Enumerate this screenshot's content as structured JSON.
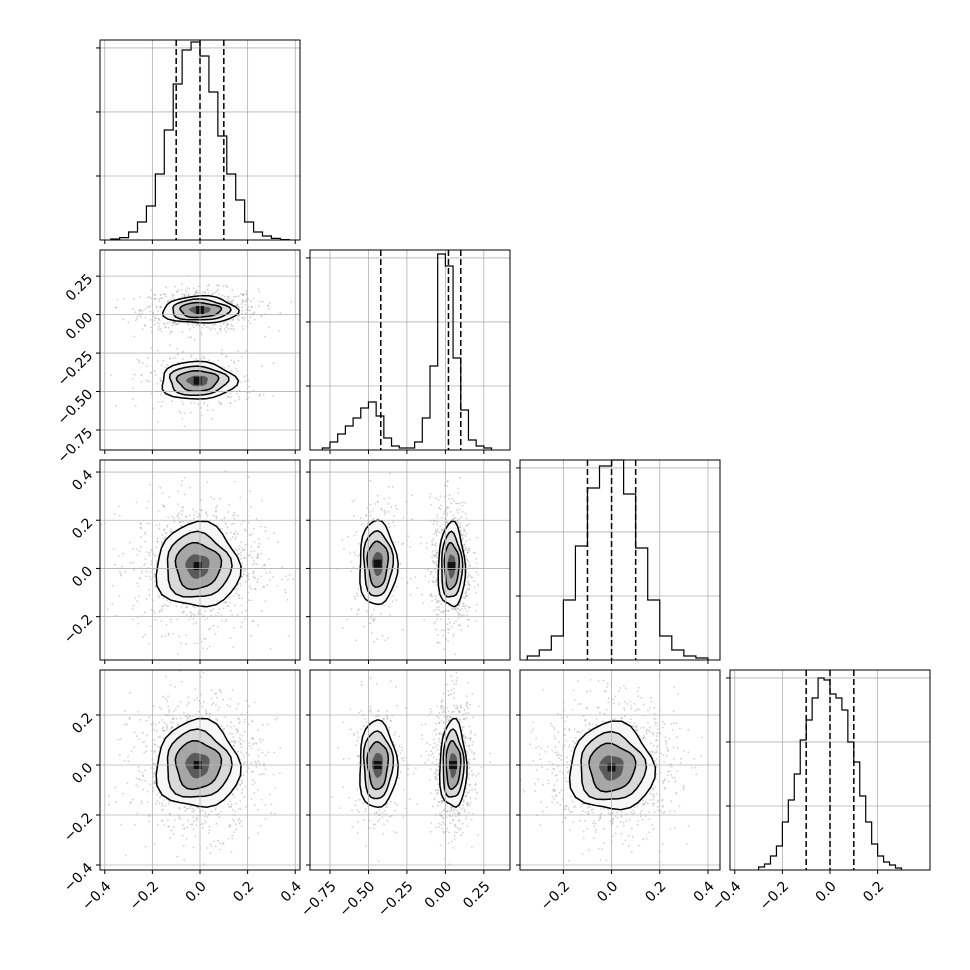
{
  "chart_data": {
    "type": "corner",
    "parameters": 4,
    "grid": true,
    "histograms": [
      {
        "param": 0,
        "xlim": [
          -0.42,
          0.42
        ],
        "ylim": [
          0,
          1.0
        ],
        "quantiles": [
          -0.1,
          0.0,
          0.1
        ],
        "bin_edges": [
          -0.375,
          -0.3375,
          -0.3,
          -0.2625,
          -0.225,
          -0.1875,
          -0.15,
          -0.1125,
          -0.075,
          -0.0375,
          0.0,
          0.0375,
          0.075,
          0.1125,
          0.15,
          0.1875,
          0.225,
          0.2625,
          0.3,
          0.3375,
          0.375
        ],
        "counts": [
          0.005,
          0.012,
          0.04,
          0.09,
          0.17,
          0.33,
          0.55,
          0.78,
          0.95,
          0.99,
          0.92,
          0.74,
          0.52,
          0.33,
          0.2,
          0.09,
          0.04,
          0.02,
          0.008,
          0.002
        ]
      },
      {
        "param": 1,
        "xlim": [
          -0.88,
          0.42
        ],
        "ylim": [
          0,
          1.0
        ],
        "quantiles": [
          -0.42,
          0.02,
          0.1
        ],
        "bin_edges": [
          -0.8,
          -0.75,
          -0.7,
          -0.65,
          -0.6,
          -0.55,
          -0.5,
          -0.45,
          -0.4,
          -0.35,
          -0.3,
          -0.25,
          -0.2,
          -0.15,
          -0.1,
          -0.05,
          0.0,
          0.05,
          0.1,
          0.15,
          0.2,
          0.25,
          0.3
        ],
        "counts": [
          0.01,
          0.04,
          0.08,
          0.12,
          0.16,
          0.21,
          0.24,
          0.17,
          0.06,
          0.02,
          0.01,
          0.01,
          0.04,
          0.16,
          0.42,
          0.98,
          0.92,
          0.46,
          0.2,
          0.05,
          0.02,
          0.01
        ]
      },
      {
        "param": 2,
        "xlim": [
          -0.38,
          0.45
        ],
        "ylim": [
          0,
          1.0
        ],
        "quantiles": [
          -0.1,
          0.0,
          0.1
        ],
        "bin_edges": [
          -0.35,
          -0.3,
          -0.25,
          -0.2,
          -0.15,
          -0.1,
          -0.05,
          0.0,
          0.05,
          0.1,
          0.15,
          0.2,
          0.25,
          0.3,
          0.35,
          0.4
        ],
        "counts": [
          0.02,
          0.05,
          0.12,
          0.3,
          0.57,
          0.86,
          0.97,
          1.0,
          0.83,
          0.56,
          0.3,
          0.12,
          0.05,
          0.02,
          0.01
        ]
      },
      {
        "param": 3,
        "xlim": [
          -0.42,
          0.42
        ],
        "ylim": [
          0,
          1.0
        ],
        "quantiles": [
          -0.1,
          0.0,
          0.1
        ],
        "bin_edges": [
          -0.3,
          -0.275,
          -0.25,
          -0.225,
          -0.2,
          -0.175,
          -0.15,
          -0.125,
          -0.1,
          -0.075,
          -0.05,
          -0.025,
          0.0,
          0.025,
          0.05,
          0.075,
          0.1,
          0.125,
          0.15,
          0.175,
          0.2,
          0.225,
          0.25,
          0.275,
          0.3
        ],
        "counts": [
          0.015,
          0.03,
          0.07,
          0.12,
          0.24,
          0.35,
          0.48,
          0.65,
          0.75,
          0.86,
          0.96,
          0.95,
          0.88,
          0.86,
          0.8,
          0.64,
          0.54,
          0.37,
          0.24,
          0.13,
          0.07,
          0.04,
          0.025,
          0.01
        ]
      }
    ],
    "scatter_panels": [
      {
        "row": 1,
        "col": 0,
        "xlim": [
          -0.42,
          0.42
        ],
        "ylim": [
          -0.88,
          0.42
        ],
        "modes": [
          {
            "cx": 0.0,
            "cy": 0.03,
            "sx": 0.09,
            "sy": 0.05,
            "weight": 0.72
          },
          {
            "cx": -0.01,
            "cy": -0.43,
            "sx": 0.09,
            "sy": 0.07,
            "weight": 0.28
          }
        ]
      },
      {
        "row": 2,
        "col": 0,
        "xlim": [
          -0.42,
          0.42
        ],
        "ylim": [
          -0.38,
          0.45
        ],
        "modes": [
          {
            "cx": -0.01,
            "cy": 0.01,
            "sx": 0.1,
            "sy": 0.1,
            "weight": 1.0
          }
        ]
      },
      {
        "row": 2,
        "col": 1,
        "xlim": [
          -0.88,
          0.42
        ],
        "ylim": [
          -0.38,
          0.45
        ],
        "modes": [
          {
            "cx": 0.04,
            "cy": 0.01,
            "sx": 0.05,
            "sy": 0.1,
            "weight": 0.72
          },
          {
            "cx": -0.44,
            "cy": 0.02,
            "sx": 0.07,
            "sy": 0.1,
            "weight": 0.28
          }
        ]
      },
      {
        "row": 3,
        "col": 0,
        "xlim": [
          -0.42,
          0.42
        ],
        "ylim": [
          -0.42,
          0.38
        ],
        "modes": [
          {
            "cx": -0.01,
            "cy": 0.0,
            "sx": 0.1,
            "sy": 0.1,
            "weight": 1.0
          }
        ]
      },
      {
        "row": 3,
        "col": 1,
        "xlim": [
          -0.88,
          0.42
        ],
        "ylim": [
          -0.42,
          0.38
        ],
        "modes": [
          {
            "cx": 0.05,
            "cy": 0.0,
            "sx": 0.05,
            "sy": 0.1,
            "weight": 0.72
          },
          {
            "cx": -0.44,
            "cy": 0.0,
            "sx": 0.07,
            "sy": 0.1,
            "weight": 0.28
          }
        ]
      },
      {
        "row": 3,
        "col": 2,
        "xlim": [
          -0.38,
          0.45
        ],
        "ylim": [
          -0.42,
          0.38
        ],
        "modes": [
          {
            "cx": 0.0,
            "cy": -0.01,
            "sx": 0.1,
            "sy": 0.1,
            "weight": 1.0
          }
        ]
      }
    ],
    "x_ticks": [
      [
        "−0.4",
        "−0.2",
        "0.0",
        "0.2",
        "0.4"
      ],
      [
        "−0.75",
        "−0.50",
        "−0.25",
        "0.00",
        "0.25"
      ],
      [
        "−0.2",
        "0.0",
        "0.2",
        "0.4"
      ],
      [
        "−0.4",
        "−0.2",
        "0.0",
        "0.2"
      ]
    ],
    "x_tick_values": [
      [
        -0.4,
        -0.2,
        0.0,
        0.2,
        0.4
      ],
      [
        -0.75,
        -0.5,
        -0.25,
        0.0,
        0.25
      ],
      [
        -0.2,
        0.0,
        0.2,
        0.4
      ],
      [
        -0.4,
        -0.2,
        0.0,
        0.2
      ]
    ],
    "y_ticks": {
      "1": [
        "0.25",
        "0.00",
        "−0.25",
        "−0.50",
        "−0.75"
      ],
      "2": [
        "0.4",
        "0.2",
        "0.0",
        "−0.2"
      ],
      "3": [
        "0.2",
        "0.0",
        "−0.2",
        "−0.4"
      ]
    },
    "y_tick_values": {
      "1": [
        0.25,
        0.0,
        -0.25,
        -0.5,
        -0.75
      ],
      "2": [
        0.4,
        0.2,
        0.0,
        -0.2
      ],
      "3": [
        0.2,
        0.0,
        -0.2,
        -0.4
      ]
    }
  }
}
